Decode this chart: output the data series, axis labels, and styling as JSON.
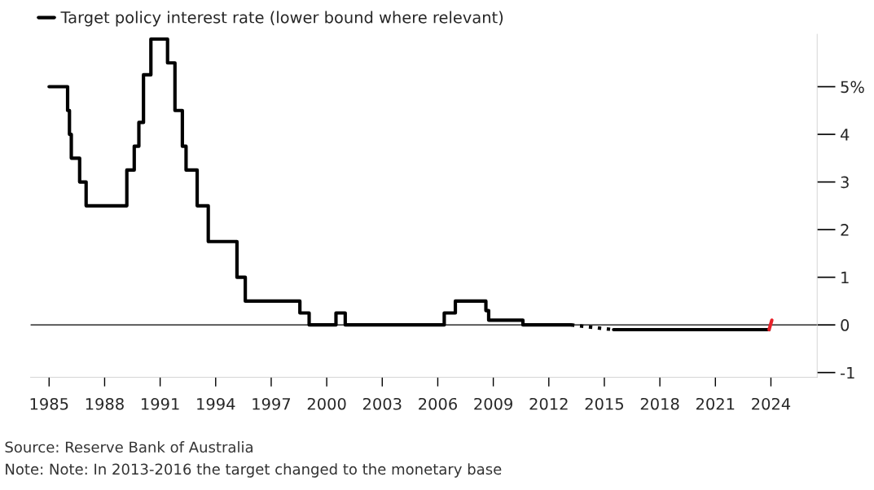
{
  "chart_data": {
    "type": "step",
    "xlim": [
      1984.0,
      2026.5
    ],
    "xticks": [
      1985,
      1988,
      1991,
      1994,
      1997,
      2000,
      2003,
      2006,
      2009,
      2012,
      2015,
      2018,
      2021,
      2024
    ],
    "ylim": [
      -1.1,
      6.1
    ],
    "yticks": [
      {
        "value": -1,
        "label": "-1"
      },
      0,
      1,
      2,
      3,
      4,
      {
        "value": 5,
        "label": "5%"
      }
    ],
    "grid": false,
    "legend": "top left",
    "ref_lines": [
      {
        "axis": "y",
        "value": 0,
        "color": "#000000"
      }
    ],
    "series": [
      {
        "name": "Target policy interest rate (lower bound where relevant)",
        "color": "#000000",
        "line_style": "solid",
        "x": [
          1985.0,
          1986.0,
          1986.1,
          1986.2,
          1986.65,
          1987.0,
          1989.2,
          1989.6,
          1989.85,
          1990.1,
          1990.5,
          1991.4,
          1991.8,
          1992.2,
          1992.4,
          1993.0,
          1993.6,
          1995.15,
          1995.6,
          1998.55,
          1999.05,
          2000.5,
          2001.0,
          2006.35,
          2006.95,
          2008.6,
          2008.75,
          2010.6,
          2013.2
        ],
        "values": [
          5.0,
          4.5,
          4.0,
          3.5,
          3.0,
          2.5,
          3.25,
          3.75,
          4.25,
          5.25,
          6.0,
          5.5,
          4.5,
          3.75,
          3.25,
          2.5,
          1.75,
          1.0,
          0.5,
          0.25,
          0,
          0.25,
          0,
          0.25,
          0.5,
          0.3,
          0.1,
          0,
          0
        ]
      },
      {
        "type": "line",
        "color": "#000000",
        "line_style": "dotted",
        "x": [
          2013.2,
          2015.5
        ],
        "values": [
          0,
          -0.1
        ]
      },
      {
        "type": "step",
        "color": "#000000",
        "line_style": "solid",
        "x": [
          2015.5,
          2023.9
        ],
        "values": [
          -0.1,
          -0.1
        ]
      },
      {
        "type": "line",
        "color": "#e8222a",
        "line_style": "solid",
        "x": [
          2023.9,
          2024.05
        ],
        "values": [
          -0.1,
          0.1
        ]
      }
    ],
    "annotations": [
      "Source: Reserve Bank of Australia",
      "Note: Note: In 2013-2016 the target changed to the monetary base"
    ]
  }
}
